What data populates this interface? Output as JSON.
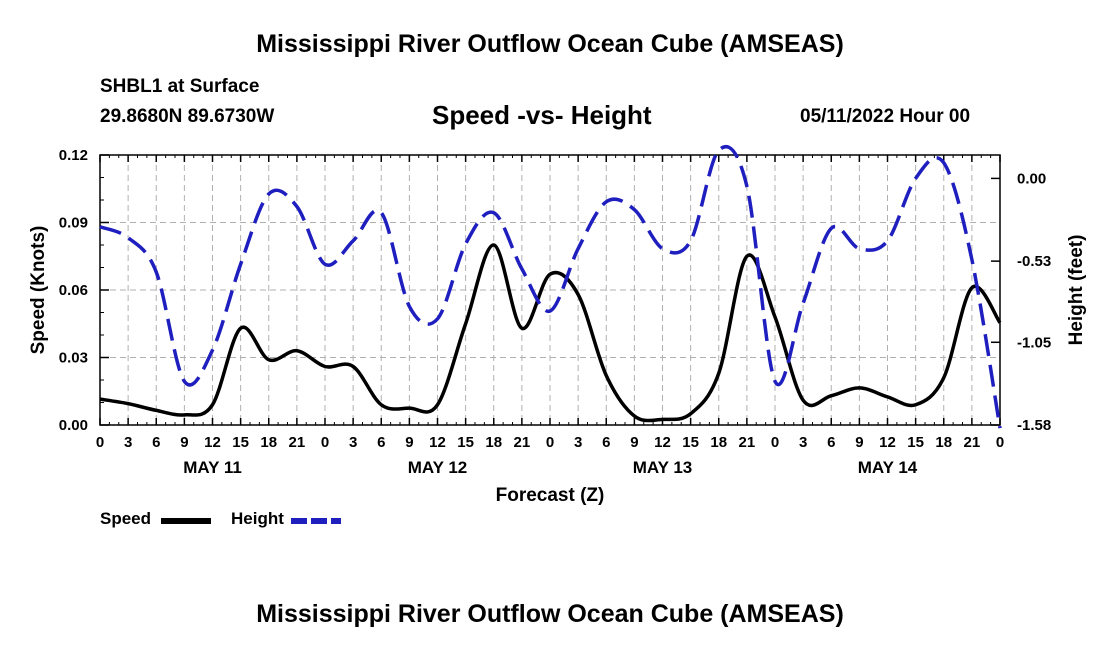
{
  "header": {
    "title": "Mississippi River Outflow Ocean Cube (AMSEAS)",
    "station": "SHBL1 at Surface",
    "coordinates": "29.8680N  89.6730W",
    "subtitle": "Speed -vs- Height",
    "date": "05/11/2022 Hour 00"
  },
  "footer": {
    "title": "Mississippi River Outflow Ocean Cube (AMSEAS)"
  },
  "legend": {
    "speed_label": "Speed",
    "height_label": "Height"
  },
  "colors": {
    "speed": "#000000",
    "height": "#1f1fbf",
    "grid": "#b0b0b0"
  },
  "chart_data": {
    "type": "line",
    "title": "Speed -vs- Height",
    "xlabel": "Forecast (Z)",
    "ylabel_left": "Speed (Knots)",
    "ylabel_right": "Height (feet)",
    "x_range": [
      0,
      96
    ],
    "x_ticks": [
      0,
      3,
      6,
      9,
      12,
      15,
      18,
      21,
      24,
      27,
      30,
      33,
      36,
      39,
      42,
      45,
      48,
      51,
      54,
      57,
      60,
      63,
      66,
      69,
      72,
      75,
      78,
      81,
      84,
      87,
      90,
      93,
      96
    ],
    "x_tick_labels": [
      "0",
      "3",
      "6",
      "9",
      "12",
      "15",
      "18",
      "21",
      "0",
      "3",
      "6",
      "9",
      "12",
      "15",
      "18",
      "21",
      "0",
      "3",
      "6",
      "9",
      "12",
      "15",
      "18",
      "21",
      "0",
      "3",
      "6",
      "9",
      "12",
      "15",
      "18",
      "21",
      "0"
    ],
    "day_labels": [
      {
        "x": 12,
        "label": "MAY 11"
      },
      {
        "x": 36,
        "label": "MAY 12"
      },
      {
        "x": 60,
        "label": "MAY 13"
      },
      {
        "x": 84,
        "label": "MAY 14"
      }
    ],
    "y_left": {
      "range": [
        0,
        0.12
      ],
      "ticks": [
        0,
        0.03,
        0.06,
        0.09,
        0.12
      ],
      "tick_labels": [
        "0.00",
        "0.03",
        "0.06",
        "0.09",
        "0.12"
      ]
    },
    "y_right": {
      "range": [
        -1.58,
        0.15
      ],
      "ticks": [
        0.0,
        -0.53,
        -1.05,
        -1.58
      ],
      "tick_labels": [
        "0.00",
        "-0.53",
        "-1.05",
        "-1.58"
      ]
    },
    "grid": true,
    "series": [
      {
        "name": "Speed",
        "axis": "left",
        "style": "solid",
        "points": [
          [
            0,
            0.0115
          ],
          [
            3,
            0.0095
          ],
          [
            6,
            0.0065
          ],
          [
            9,
            0.0045
          ],
          [
            12,
            0.009
          ],
          [
            15,
            0.043
          ],
          [
            18,
            0.029
          ],
          [
            21,
            0.033
          ],
          [
            24,
            0.026
          ],
          [
            27,
            0.026
          ],
          [
            30,
            0.009
          ],
          [
            33,
            0.0075
          ],
          [
            36,
            0.009
          ],
          [
            39,
            0.045
          ],
          [
            42,
            0.08
          ],
          [
            45,
            0.043
          ],
          [
            48,
            0.067
          ],
          [
            51,
            0.058
          ],
          [
            54,
            0.022
          ],
          [
            57,
            0.004
          ],
          [
            60,
            0.0025
          ],
          [
            63,
            0.005
          ],
          [
            66,
            0.023
          ],
          [
            69,
            0.075
          ],
          [
            72,
            0.048
          ],
          [
            75,
            0.011
          ],
          [
            78,
            0.013
          ],
          [
            81,
            0.0165
          ],
          [
            84,
            0.0125
          ],
          [
            87,
            0.009
          ],
          [
            90,
            0.021
          ],
          [
            93,
            0.061
          ],
          [
            96,
            0.0455
          ]
        ]
      },
      {
        "name": "Height",
        "axis": "right",
        "style": "dashed",
        "points": [
          [
            0,
            -0.31
          ],
          [
            3,
            -0.38
          ],
          [
            6,
            -0.6
          ],
          [
            9,
            -1.3
          ],
          [
            12,
            -1.1
          ],
          [
            15,
            -0.55
          ],
          [
            18,
            -0.1
          ],
          [
            21,
            -0.18
          ],
          [
            24,
            -0.55
          ],
          [
            27,
            -0.4
          ],
          [
            30,
            -0.22
          ],
          [
            33,
            -0.82
          ],
          [
            36,
            -0.9
          ],
          [
            39,
            -0.42
          ],
          [
            42,
            -0.22
          ],
          [
            45,
            -0.58
          ],
          [
            48,
            -0.85
          ],
          [
            51,
            -0.45
          ],
          [
            54,
            -0.15
          ],
          [
            57,
            -0.2
          ],
          [
            60,
            -0.45
          ],
          [
            63,
            -0.4
          ],
          [
            66,
            0.18
          ],
          [
            69,
            -0.05
          ],
          [
            72,
            -1.3
          ],
          [
            75,
            -0.8
          ],
          [
            78,
            -0.32
          ],
          [
            81,
            -0.45
          ],
          [
            84,
            -0.4
          ],
          [
            87,
            0.0
          ],
          [
            90,
            0.1
          ],
          [
            93,
            -0.52
          ],
          [
            96,
            -1.6
          ]
        ]
      }
    ]
  }
}
